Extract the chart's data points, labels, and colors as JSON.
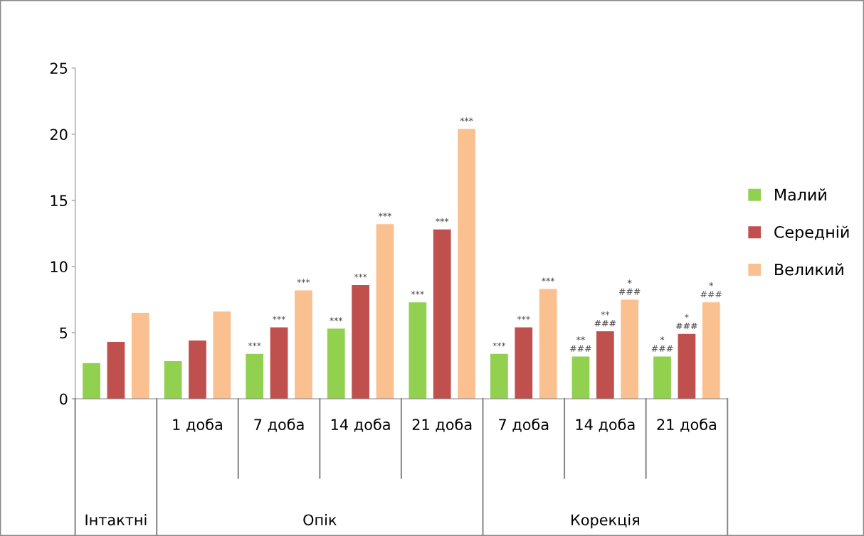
{
  "chart_data": {
    "type": "bar",
    "categories": [
      null,
      "1 доба",
      "7 доба",
      "14 доба",
      "21 доба",
      "7 доба",
      "14 доба",
      "21 доба"
    ],
    "series": [
      {
        "name": "Малий",
        "color": "#92d050",
        "values": [
          2.7,
          2.85,
          3.4,
          5.3,
          7.3,
          3.4,
          3.2,
          3.2
        ],
        "value_labels": [
          null,
          null,
          "***",
          "***",
          "***",
          "***",
          "**\n###",
          "*\n###"
        ]
      },
      {
        "name": "Середній",
        "color": "#c0504d",
        "values": [
          4.3,
          4.4,
          5.4,
          8.6,
          12.8,
          5.4,
          5.1,
          4.9
        ],
        "value_labels": [
          null,
          null,
          "***",
          "***",
          "***",
          "***",
          "**\n###",
          "*\n###"
        ]
      },
      {
        "name": "Великий",
        "color": "#fac090",
        "values": [
          6.5,
          6.6,
          8.2,
          13.2,
          20.4,
          8.3,
          7.5,
          7.3
        ],
        "value_labels": [
          null,
          null,
          "***",
          "***",
          "***",
          "***",
          "*\n###",
          "*\n###"
        ]
      }
    ],
    "annotations": [
      "Інтактні",
      "Опік",
      "Корекція"
    ],
    "ylim": [
      0,
      25
    ],
    "yticks": [
      0,
      5,
      10,
      15,
      20,
      25
    ],
    "grid": false,
    "legend": "right"
  }
}
